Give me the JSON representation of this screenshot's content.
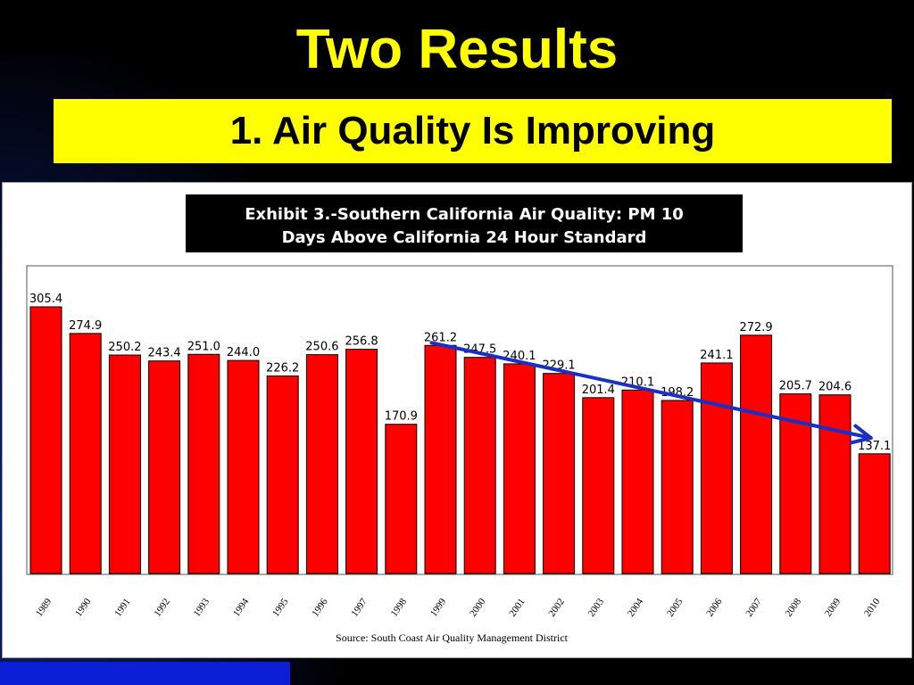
{
  "slide": {
    "title": "Two Results",
    "subtitle": "1. Air Quality Is Improving"
  },
  "colors": {
    "background": "#000000",
    "title_text": "#ffff00",
    "subtitle_box": "#ffff00",
    "bar_fill": "#ff0000",
    "trend_arrow": "#1a2fc4",
    "footer_bar": "#0a1fd6"
  },
  "chart_data": {
    "type": "bar",
    "title_lines": [
      "Exhibit 3.-Southern California Air Quality:  PM 10",
      "Days Above California 24 Hour Standard"
    ],
    "categories": [
      "1989",
      "1990",
      "1991",
      "1992",
      "1993",
      "1994",
      "1995",
      "1996",
      "1997",
      "1998",
      "1999",
      "2000",
      "2001",
      "2002",
      "2003",
      "2004",
      "2005",
      "2006",
      "2007",
      "2008",
      "2009",
      "2010"
    ],
    "values": [
      305.4,
      274.9,
      250.2,
      243.4,
      251.0,
      244.0,
      226.2,
      250.6,
      256.8,
      170.9,
      261.2,
      247.5,
      240.1,
      229.1,
      201.4,
      210.1,
      198.2,
      241.1,
      272.9,
      205.7,
      204.6,
      137.1
    ],
    "value_labels": [
      "305.4",
      "274.9",
      "250.2",
      "243.4",
      "251.0",
      "244.0",
      "226.2",
      "250.6",
      "256.8",
      "170.9",
      "261.2",
      "247.5",
      "240.1",
      "229.1",
      "201.4",
      "210.1",
      "198.2",
      "241.1",
      "272.9",
      "205.7",
      "204.6",
      "137.1"
    ],
    "ylim": [
      0,
      305.4
    ],
    "grid": false,
    "source": "Source:  South Coast Air Quality Management District",
    "trend_arrow": {
      "from_category": "1999",
      "to_category": "2010"
    }
  }
}
